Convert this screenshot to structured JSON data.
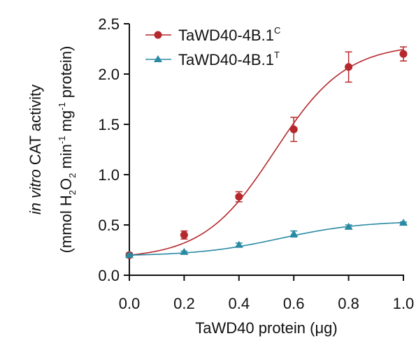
{
  "chart_data": {
    "type": "line",
    "xlabel": "TaWD40 protein (μg)",
    "ylabel_line1_italic": "in vitro",
    "ylabel_line1_rest": " CAT activity",
    "ylabel_line2_parts": {
      "p1": "(mmol H",
      "p1_sub": "2",
      "p2": "O",
      "p2_sub": "2",
      "p3": " min",
      "p3_sup": "-1",
      "p4": " mg",
      "p4_sup": "-1",
      "p5": " protein)"
    },
    "xlim": [
      0,
      1.0
    ],
    "ylim": [
      0,
      2.5
    ],
    "x_ticks": [
      0.0,
      0.2,
      0.4,
      0.6,
      0.8,
      1.0
    ],
    "x_tick_labels": [
      "0.0",
      "0.2",
      "0.4",
      "0.6",
      "0.8",
      "1.0"
    ],
    "y_ticks": [
      0.0,
      0.5,
      1.0,
      1.5,
      2.0,
      2.5
    ],
    "y_tick_labels": [
      "0.0",
      "0.5",
      "1.0",
      "1.5",
      "2.0",
      "2.5"
    ],
    "legend_position": "top-left",
    "grid": false,
    "series": [
      {
        "name_base": "TaWD40-4B.1",
        "name_sup": "C",
        "color": "#b5282c",
        "marker": "circle",
        "x": [
          0.0,
          0.2,
          0.4,
          0.6,
          0.8,
          1.0
        ],
        "y": [
          0.2,
          0.4,
          0.78,
          1.45,
          2.07,
          2.2
        ],
        "err": [
          0.02,
          0.04,
          0.05,
          0.12,
          0.15,
          0.07
        ],
        "fit": {
          "base": 0.2,
          "amplitude": 2.1,
          "midpoint": 0.53,
          "slope": 0.13
        }
      },
      {
        "name_base": "TaWD40-4B.1",
        "name_sup": "T",
        "color": "#2a8aa3",
        "marker": "triangle",
        "x": [
          0.0,
          0.2,
          0.4,
          0.6,
          0.8,
          1.0
        ],
        "y": [
          0.2,
          0.23,
          0.3,
          0.41,
          0.48,
          0.52
        ],
        "err": [
          0.01,
          0.01,
          0.02,
          0.03,
          0.02,
          0.01
        ],
        "fit": {
          "base": 0.2,
          "amplitude": 0.34,
          "midpoint": 0.55,
          "slope": 0.15
        }
      }
    ]
  }
}
